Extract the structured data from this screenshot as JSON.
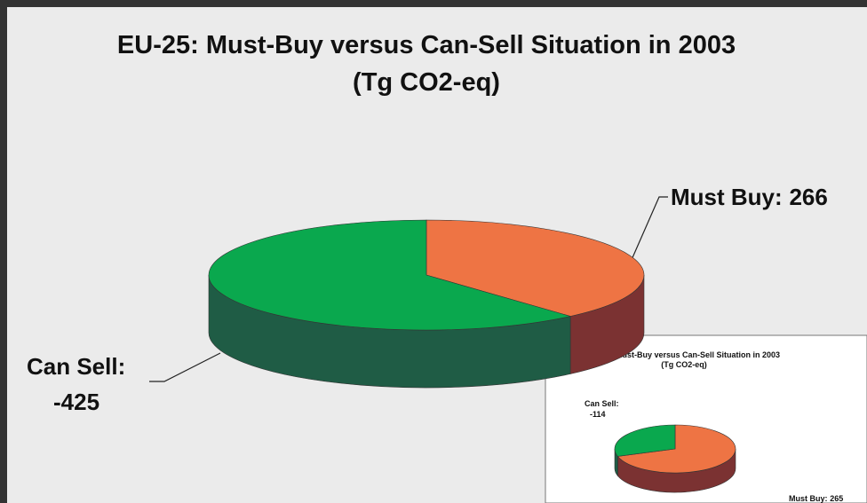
{
  "chart_data": [
    {
      "type": "pie",
      "title": "EU-25: Must-Buy versus Can-Sell Situation in 2003",
      "subtitle": "(Tg CO2-eq)",
      "labels": [
        "Must Buy:",
        "Can Sell:"
      ],
      "values": [
        266,
        -425
      ],
      "colors": [
        "#ee7444",
        "#0aa84e"
      ],
      "side_colors": [
        "#7b3232",
        "#1f5c45"
      ]
    },
    {
      "type": "pie",
      "title": "EU-15: Must-Buy versus Can-Sell Situation in 2003",
      "subtitle": "(Tg CO2-eq)",
      "labels": [
        "Must Buy:",
        "Can Sell:"
      ],
      "values": [
        265,
        -114
      ],
      "colors": [
        "#ee7444",
        "#0aa84e"
      ],
      "side_colors": [
        "#7b3232",
        "#1f5c45"
      ]
    }
  ]
}
